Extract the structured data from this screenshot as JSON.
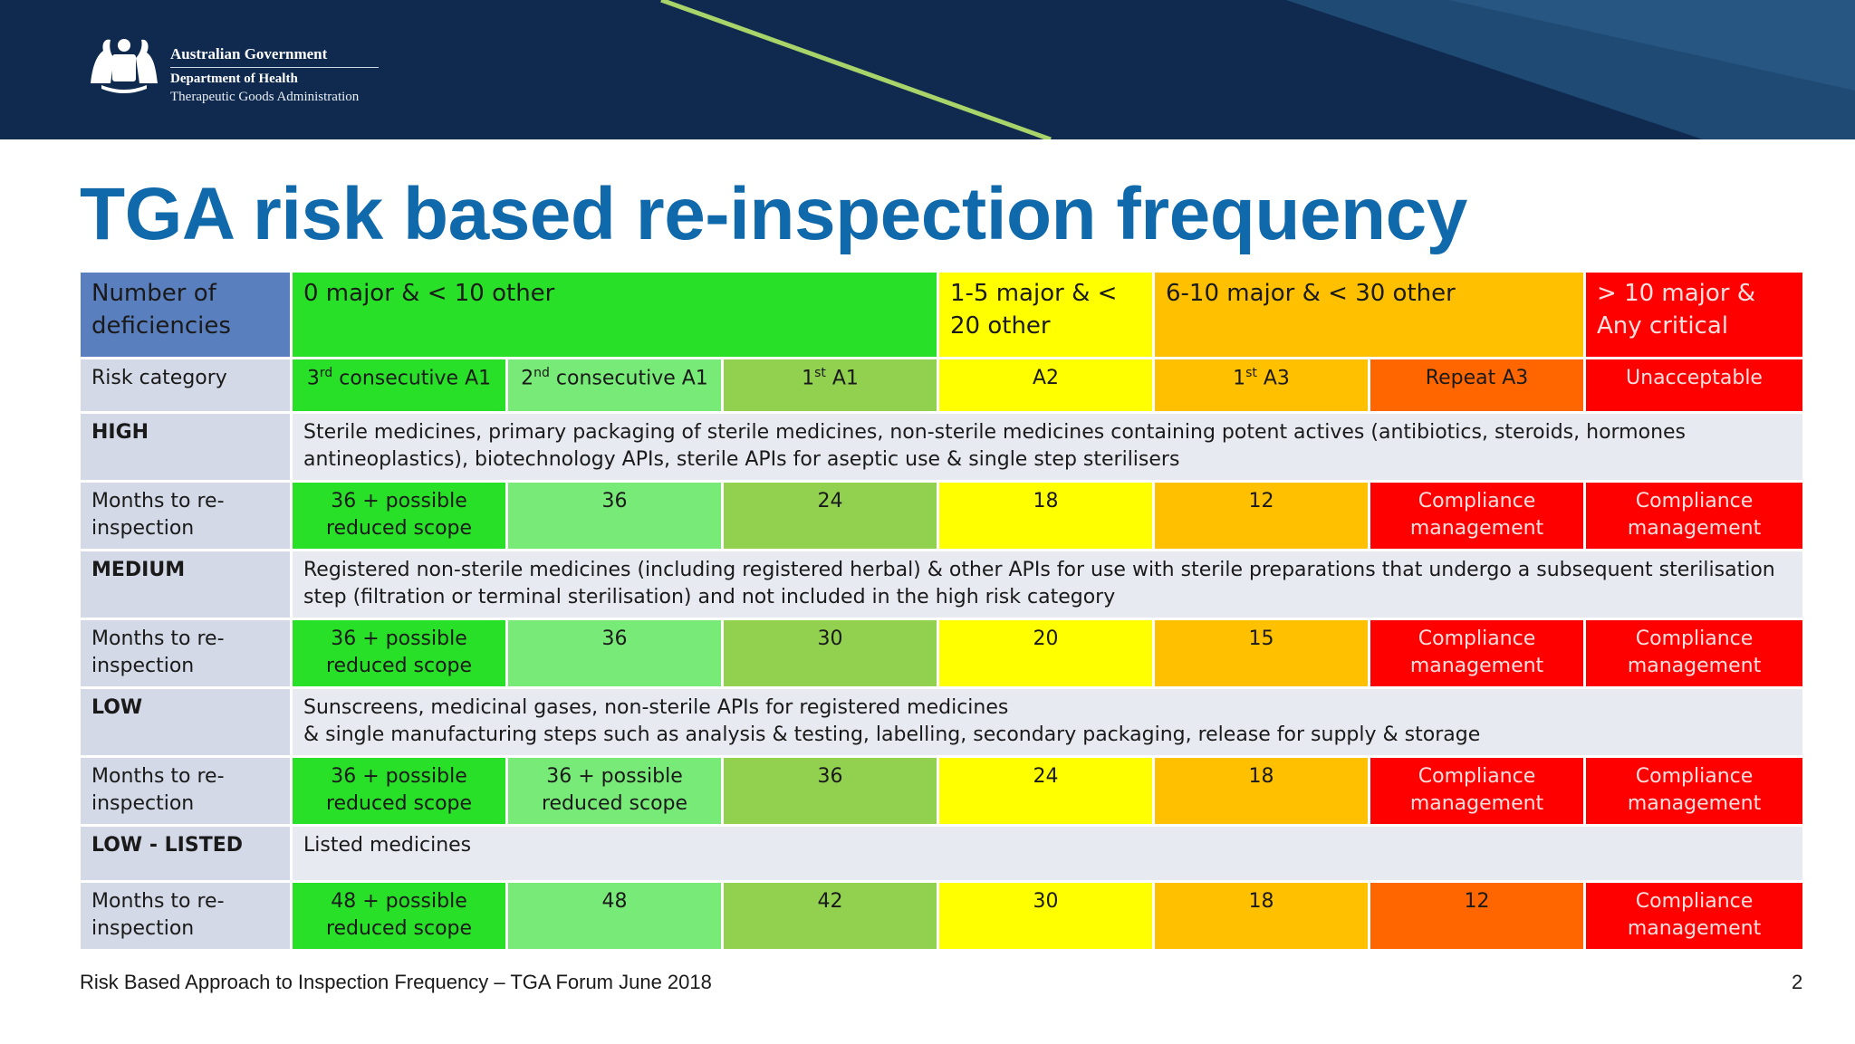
{
  "header": {
    "gov": "Australian Government",
    "dept": "Department of Health",
    "agency": "Therapeutic Goods Administration"
  },
  "title": "TGA risk based re-inspection frequency",
  "table": {
    "header_row": {
      "label": "Number of deficiencies",
      "groups": [
        "0 major &  < 10 other",
        "1-5 major & < 20 other",
        "6-10 major & < 30 other",
        "> 10 major & Any critical"
      ]
    },
    "risk_row": {
      "label": "Risk category",
      "cells": [
        {
          "sup_pre": "3",
          "sup": "rd",
          "text": " consecutive A1"
        },
        {
          "sup_pre": "2",
          "sup": "nd",
          "text": " consecutive  A1"
        },
        {
          "sup_pre": "1",
          "sup": "st",
          "text": " A1"
        },
        {
          "sup_pre": "",
          "sup": "",
          "text": "A2"
        },
        {
          "sup_pre": "1",
          "sup": "st",
          "text": " A3"
        },
        {
          "sup_pre": "",
          "sup": "",
          "text": "Repeat A3"
        },
        {
          "sup_pre": "",
          "sup": "",
          "text": "Unacceptable"
        }
      ]
    },
    "sections": [
      {
        "name": "HIGH",
        "description": "Sterile medicines, primary packaging of sterile medicines, non-sterile medicines containing potent actives (antibiotics, steroids, hormones antineoplastics), biotechnology APIs, sterile APIs for aseptic use & single step sterilisers",
        "months_label": "Months to re-inspection",
        "months": [
          "36 + possible reduced scope",
          "36",
          "24",
          "18",
          "12",
          "Compliance management",
          "Compliance management"
        ]
      },
      {
        "name": "MEDIUM",
        "description": "Registered non-sterile medicines (including registered herbal) & other APIs for use with sterile preparations that undergo a subsequent sterilisation step (filtration or terminal sterilisation) and not included in the high risk category",
        "months_label": "Months to re-inspection",
        "months": [
          "36 + possible reduced scope",
          "36",
          "30",
          "20",
          "15",
          "Compliance management",
          "Compliance management"
        ]
      },
      {
        "name": "LOW",
        "description": "Sunscreens, medicinal gases, non-sterile APIs for registered medicines\n & single manufacturing steps such as analysis & testing, labelling, secondary packaging, release for supply & storage",
        "months_label": "Months to re-inspection",
        "months": [
          "36 + possible reduced scope",
          "36 + possible reduced scope",
          "36",
          "24",
          "18",
          "Compliance management",
          "Compliance management"
        ]
      },
      {
        "name": "LOW - LISTED",
        "description": "Listed medicines",
        "months_label": "Months to re-inspection",
        "months": [
          "48 + possible reduced scope",
          "48",
          "42",
          "30",
          "18",
          "12",
          "Compliance management"
        ]
      }
    ]
  },
  "colors": {
    "title_blue": "#1069aa",
    "banner_navy": "#0f2a4e",
    "green_dark": "#28e028",
    "green_light": "#78ea78",
    "green_olive": "#92d050",
    "yellow": "#ffff00",
    "amber": "#ffc000",
    "orange": "#ff6600",
    "red": "#ff0000"
  },
  "footer": {
    "text": "Risk Based Approach to Inspection Frequency – TGA Forum June 2018",
    "page": "2"
  }
}
